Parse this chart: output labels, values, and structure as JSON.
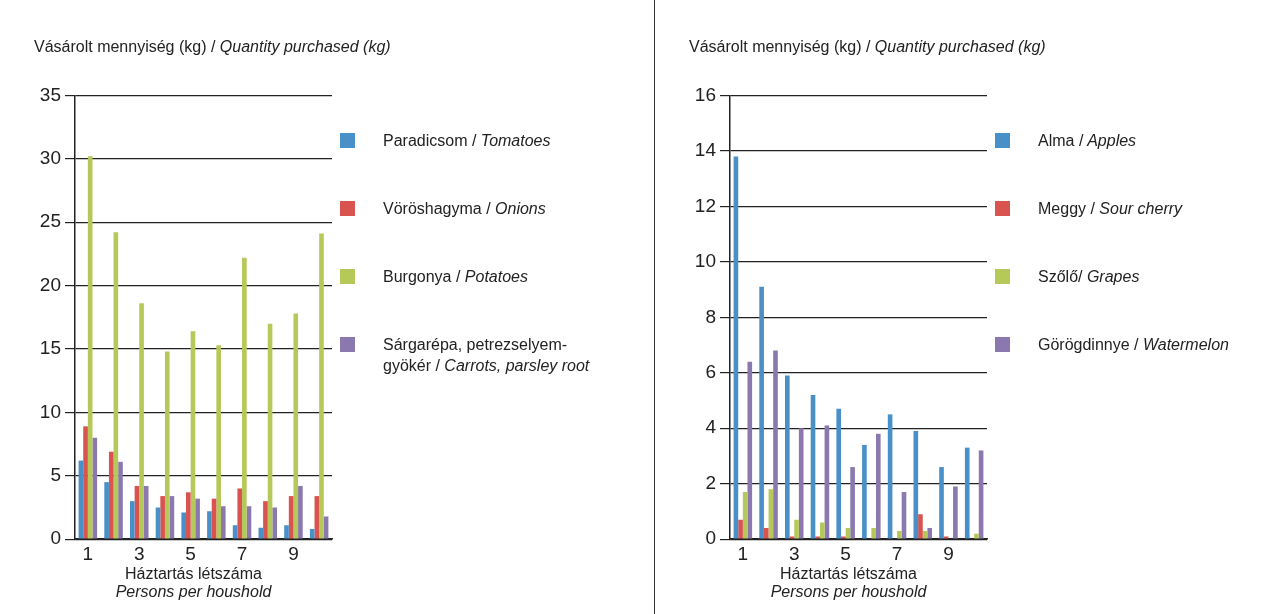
{
  "chart_data": [
    {
      "type": "bar",
      "ylabel": "Vásárolt mennyiség (kg) / Quantity purchased (kg)",
      "xlabel": "Háztartás létszáma\nPersons per houshold",
      "categories": [
        "1",
        null,
        "3",
        null,
        "5",
        null,
        "7",
        null,
        "9",
        null
      ],
      "series": [
        {
          "name": "Paradicsom / Tomatoes",
          "color": "#4a90c8",
          "values": [
            6.2,
            4.5,
            3.0,
            2.5,
            2.1,
            2.2,
            1.1,
            0.9,
            1.1,
            0.8
          ]
        },
        {
          "name": "Vöröshagyma / Onions",
          "color": "#d9534f",
          "values": [
            8.9,
            6.9,
            4.2,
            3.4,
            3.7,
            3.2,
            4.0,
            3.0,
            3.4,
            3.4
          ]
        },
        {
          "name": "Burgonya / Potatoes",
          "color": "#b5c95a",
          "values": [
            30.2,
            24.2,
            18.6,
            14.8,
            16.4,
            15.3,
            22.2,
            17.0,
            17.8,
            24.1
          ]
        },
        {
          "name": "Sárgarépa, petrezselyem-gyökér / Carrots, parsley root",
          "color": "#8a78ae",
          "values": [
            8.0,
            6.1,
            4.2,
            3.4,
            3.2,
            2.6,
            2.6,
            2.5,
            4.2,
            1.8
          ]
        }
      ],
      "ylim": [
        0,
        35
      ],
      "yticks": [
        0,
        5,
        10,
        15,
        20,
        25,
        30,
        35
      ],
      "grid": "y",
      "legend": "right"
    },
    {
      "type": "bar",
      "ylabel": "Vásárolt mennyiség (kg) / Quantity purchased (kg)",
      "xlabel": "Háztartás létszáma\nPersons per houshold",
      "categories": [
        "1",
        null,
        "3",
        null,
        "5",
        null,
        "7",
        null,
        "9",
        null
      ],
      "series": [
        {
          "name": "Alma / Apples",
          "color": "#4a90c8",
          "values": [
            13.8,
            9.1,
            5.9,
            5.2,
            4.7,
            3.4,
            4.5,
            3.9,
            2.6,
            3.3
          ]
        },
        {
          "name": "Meggy / Sour cherry",
          "color": "#d9534f",
          "values": [
            0.7,
            0.4,
            0.1,
            0.1,
            0.1,
            0,
            0,
            0.9,
            0.1,
            0
          ]
        },
        {
          "name": "Szőlő/ Grapes",
          "color": "#b5c95a",
          "values": [
            1.7,
            1.8,
            0.7,
            0.6,
            0.4,
            0.4,
            0.3,
            0.3,
            0,
            0.2
          ]
        },
        {
          "name": "Görögdinnye / Watermelon",
          "color": "#8a78ae",
          "values": [
            6.4,
            6.8,
            4.0,
            4.1,
            2.6,
            3.8,
            1.7,
            0.4,
            1.9,
            3.2
          ]
        }
      ],
      "ylim": [
        0,
        16
      ],
      "yticks": [
        0,
        2,
        4,
        6,
        8,
        10,
        12,
        14,
        16
      ],
      "grid": "y",
      "legend": "right"
    }
  ]
}
